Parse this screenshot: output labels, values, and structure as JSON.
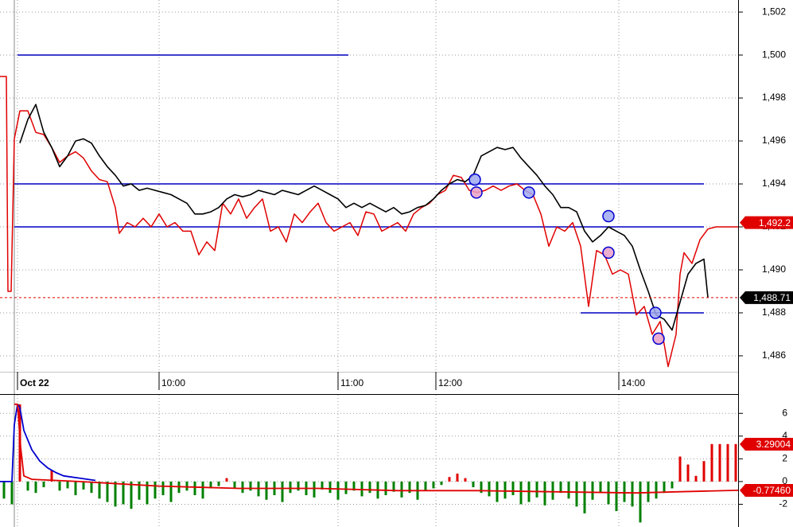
{
  "chart_data": [
    {
      "type": "line",
      "xlim": [
        0,
        185.6
      ],
      "ylim": [
        1484.22,
        1502.56
      ],
      "xticks": [
        {
          "value": 4.4,
          "label": "Oct 22"
        },
        {
          "value": 40,
          "label": "10:00"
        },
        {
          "value": 85,
          "label": "11:00"
        },
        {
          "value": 109.6,
          "label": "12:00"
        },
        {
          "value": 155.6,
          "label": "14:00"
        }
      ],
      "yticks": [
        {
          "value": 1486,
          "label": "1,486"
        },
        {
          "value": 1488,
          "label": "1,488"
        },
        {
          "value": 1490,
          "label": "1,490"
        },
        {
          "value": 1492,
          "label": "1,492"
        },
        {
          "value": 1494,
          "label": "1,494"
        },
        {
          "value": 1496,
          "label": "1,496"
        },
        {
          "value": 1498,
          "label": "1,498"
        },
        {
          "value": 1500,
          "label": "1,500"
        },
        {
          "value": 1502,
          "label": "1,502"
        }
      ],
      "grid": true,
      "series": [
        {
          "color": "#000000",
          "x": [
            5,
            7,
            9,
            11,
            13,
            15,
            17,
            19,
            21,
            23,
            25,
            27,
            29,
            31,
            33,
            35,
            37,
            39,
            41,
            43,
            45,
            47,
            49,
            51,
            53,
            55,
            57,
            59,
            61,
            63,
            65,
            67,
            69,
            71,
            73,
            75,
            77,
            79,
            81,
            83,
            85,
            87,
            89,
            91,
            93,
            95,
            97,
            99,
            101,
            103,
            105,
            107,
            109,
            111,
            113,
            115,
            117,
            119,
            121,
            123,
            125,
            127,
            129,
            131,
            133,
            135,
            137,
            139,
            141,
            143,
            145,
            147,
            149,
            151,
            153,
            155,
            157,
            159,
            161,
            163,
            165,
            167,
            169,
            171,
            173,
            175,
            177,
            178
          ],
          "values": [
            1495.9,
            1497.0,
            1497.7,
            1496.4,
            1495.7,
            1494.8,
            1495.3,
            1496.0,
            1496.1,
            1495.9,
            1495.3,
            1494.8,
            1494.4,
            1493.9,
            1494.0,
            1493.7,
            1493.8,
            1493.7,
            1493.6,
            1493.5,
            1493.3,
            1493.1,
            1492.6,
            1492.6,
            1492.7,
            1492.9,
            1493.3,
            1493.5,
            1493.4,
            1493.5,
            1493.7,
            1493.6,
            1493.5,
            1493.7,
            1493.6,
            1493.5,
            1493.7,
            1493.9,
            1493.7,
            1493.5,
            1493.3,
            1492.9,
            1493.1,
            1492.9,
            1493.1,
            1492.9,
            1492.7,
            1492.9,
            1492.6,
            1492.7,
            1492.9,
            1493.0,
            1493.3,
            1493.7,
            1494.0,
            1494.2,
            1494.1,
            1494.4,
            1495.3,
            1495.5,
            1495.7,
            1495.6,
            1495.7,
            1495.2,
            1494.8,
            1494.4,
            1493.9,
            1493.5,
            1492.9,
            1492.9,
            1492.7,
            1491.8,
            1491.3,
            1491.6,
            1492.0,
            1491.8,
            1491.6,
            1491.1,
            1490.0,
            1489.0,
            1487.9,
            1487.7,
            1487.2,
            1488.5,
            1489.8,
            1490.3,
            1490.5,
            1488.71
          ]
        },
        {
          "color": "#e00000",
          "x": [
            0,
            1.6,
            2,
            2.8,
            3.6,
            5,
            7,
            9,
            11,
            13,
            15,
            17,
            19,
            21,
            23,
            25,
            27,
            29,
            30,
            32,
            34,
            36,
            38,
            40,
            42,
            44,
            46,
            48,
            50,
            52,
            54,
            56,
            58,
            60,
            62,
            64,
            66,
            68,
            70,
            72,
            74,
            76,
            78,
            80,
            82,
            84,
            86,
            88,
            90,
            92,
            94,
            96,
            98,
            100,
            102,
            104,
            106,
            108,
            110,
            112,
            114,
            116,
            118,
            120,
            122,
            124,
            126,
            128,
            130,
            132,
            134,
            136,
            138,
            140,
            142,
            144,
            146,
            148,
            150,
            152,
            154,
            156,
            158,
            160,
            162,
            164,
            166,
            168,
            170,
            171,
            172,
            174,
            176,
            178,
            180,
            185.6
          ],
          "values": [
            1499.0,
            1499.0,
            1489.0,
            1489.0,
            1496.1,
            1497.4,
            1497.4,
            1496.4,
            1496.3,
            1495.7,
            1495.0,
            1495.3,
            1495.5,
            1495.2,
            1494.6,
            1494.2,
            1494.1,
            1492.9,
            1491.7,
            1492.2,
            1492.0,
            1492.4,
            1492.0,
            1492.6,
            1492.0,
            1492.2,
            1491.8,
            1491.8,
            1490.7,
            1491.3,
            1490.9,
            1493.1,
            1492.6,
            1493.3,
            1492.4,
            1492.9,
            1493.3,
            1491.8,
            1492.0,
            1491.3,
            1492.6,
            1492.2,
            1492.7,
            1493.1,
            1492.2,
            1491.8,
            1492.0,
            1492.2,
            1491.6,
            1492.7,
            1492.6,
            1491.8,
            1492.0,
            1492.2,
            1491.8,
            1492.6,
            1492.9,
            1493.1,
            1493.5,
            1493.7,
            1494.4,
            1494.3,
            1493.7,
            1493.6,
            1493.7,
            1493.9,
            1493.7,
            1493.9,
            1494.0,
            1493.7,
            1493.5,
            1492.6,
            1491.1,
            1492.0,
            1491.8,
            1492.2,
            1491.1,
            1488.3,
            1490.9,
            1490.7,
            1489.8,
            1490.0,
            1489.8,
            1487.9,
            1488.3,
            1487.0,
            1487.6,
            1485.5,
            1487.0,
            1489.8,
            1490.8,
            1490.3,
            1491.4,
            1491.9,
            1492.0,
            1492.0
          ]
        }
      ],
      "hlines": {
        "color": "#0000c0",
        "lines": [
          {
            "value": 1500,
            "x": [
              4.4,
              87.6
            ]
          },
          {
            "value": 1494,
            "x": [
              3.6,
              177
            ]
          },
          {
            "value": 1492,
            "x": [
              3.6,
              177
            ]
          },
          {
            "value": 1488,
            "x": [
              146,
              177
            ]
          }
        ]
      },
      "markers": [
        {
          "x": 119.4,
          "y": 1494.2,
          "fill": "#9fa8f0"
        },
        {
          "x": 119.8,
          "y": 1493.6,
          "fill": "#e8a0c8"
        },
        {
          "x": 133,
          "y": 1493.6,
          "fill": "#9fa8f0"
        },
        {
          "x": 153,
          "y": 1492.5,
          "fill": "#9fa8f0"
        },
        {
          "x": 153,
          "y": 1490.8,
          "fill": "#e8a0c8"
        },
        {
          "x": 164.8,
          "y": 1488.0,
          "fill": "#9fa8f0"
        },
        {
          "x": 165.6,
          "y": 1486.8,
          "fill": "#e8a0c8"
        }
      ],
      "price_tags": [
        {
          "value": 1492.2,
          "label": "1,492.2",
          "color": "#e00000"
        },
        {
          "value": 1488.71,
          "label": "1,488.71",
          "color": "#000000",
          "line": true
        }
      ]
    },
    {
      "type": "bar",
      "xlim": [
        0,
        185.6
      ],
      "ylim": [
        -4,
        7.7
      ],
      "yticks": [
        6,
        4,
        2,
        0,
        -2
      ],
      "grid": true,
      "bars": {
        "up_color": "#e00000",
        "down_color": "#008000",
        "x": [
          1,
          3,
          5,
          7,
          9,
          11,
          13,
          15,
          17,
          19,
          21,
          23,
          25,
          27,
          29,
          31,
          33,
          35,
          37,
          39,
          41,
          43,
          45,
          47,
          49,
          51,
          53,
          55,
          57,
          59,
          61,
          63,
          65,
          67,
          69,
          71,
          73,
          75,
          77,
          79,
          81,
          83,
          85,
          87,
          89,
          91,
          93,
          95,
          97,
          99,
          101,
          103,
          105,
          107,
          109,
          111,
          113,
          115,
          117,
          119,
          121,
          123,
          125,
          127,
          129,
          131,
          133,
          135,
          137,
          139,
          141,
          143,
          145,
          147,
          149,
          151,
          153,
          155,
          157,
          159,
          161,
          163,
          165,
          167,
          169,
          171,
          173,
          175,
          177,
          179,
          181,
          183,
          185
        ],
        "values": [
          -1.5,
          -2.0,
          6.8,
          -0.8,
          -1.0,
          -0.5,
          1.0,
          -0.8,
          -0.6,
          -1.2,
          -0.7,
          -1.0,
          -1.5,
          -1.8,
          -2.2,
          -2.0,
          -2.4,
          -1.6,
          -2.0,
          -1.5,
          -1.2,
          -1.8,
          -1.0,
          -0.8,
          -1.2,
          -1.5,
          -0.6,
          -0.4,
          0.3,
          -0.6,
          -1.0,
          -0.8,
          -1.3,
          -1.6,
          -1.2,
          -1.8,
          -1.0,
          -0.8,
          -1.2,
          -1.4,
          -0.7,
          -1.0,
          -1.6,
          -1.1,
          -0.8,
          -1.3,
          -1.0,
          -1.5,
          -1.2,
          -0.9,
          -1.4,
          -1.0,
          -1.6,
          -0.8,
          -0.6,
          -0.3,
          0.4,
          0.7,
          0.3,
          -0.5,
          -1.0,
          -1.3,
          -1.8,
          -1.5,
          -1.2,
          -2.0,
          -1.8,
          -1.4,
          -2.1,
          -1.6,
          -1.0,
          -1.5,
          -2.2,
          -2.8,
          -1.6,
          -1.0,
          -2.0,
          -2.6,
          -1.8,
          -2.2,
          -3.6,
          -1.8,
          -1.5,
          -1.0,
          -0.6,
          2.2,
          1.5,
          0.5,
          1.8,
          3.3,
          3.3,
          3.3,
          3.3
        ]
      },
      "series": [
        {
          "color": "#0000d0",
          "x": [
            0,
            3,
            3.6,
            4.4,
            5,
            6,
            8,
            10,
            12,
            14,
            16,
            20,
            24
          ],
          "values": [
            0,
            0,
            5,
            6.8,
            6.5,
            4.5,
            2.8,
            1.8,
            1.2,
            0.8,
            0.5,
            0.3,
            0.1
          ]
        },
        {
          "color": "#e00000",
          "x": [
            3.6,
            4.4,
            5.2,
            6,
            8,
            20,
            40,
            60,
            80,
            100,
            120,
            140,
            160,
            170,
            185.6
          ],
          "values": [
            6.8,
            6.8,
            3.0,
            0.5,
            0.2,
            0,
            -0.4,
            -0.6,
            -0.6,
            -0.8,
            -0.8,
            -0.9,
            -1.0,
            -0.9,
            -0.77
          ]
        }
      ],
      "price_tags": [
        {
          "value": 3.29004,
          "label": "3.29004",
          "color": "#e00000"
        },
        {
          "value": -0.7746,
          "label": "-0.77460",
          "color": "#e00000"
        }
      ]
    }
  ]
}
